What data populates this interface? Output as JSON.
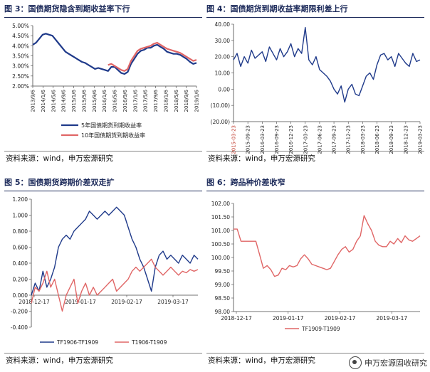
{
  "panels": [
    {
      "title": "图 3：国债期货隐含到期收益率下行",
      "source": "资料来源：wind，申万宏源研究"
    },
    {
      "title": "图 4：国债期货到期收益率期限利差上行",
      "source": "资料来源：wind，申万宏源研究"
    },
    {
      "title": "图 5：国债期货跨期价差双走扩",
      "source": "资料来源：wind，申万宏源研究"
    },
    {
      "title": "图 6：跨品种价差收窄",
      "source": "资料来源：wind，申万宏源研究"
    }
  ],
  "watermark": "申万宏源固收研究",
  "colors": {
    "navy": "#1f3a8a",
    "red": "#e06666",
    "title": "#1c2a5a"
  },
  "chart_data": [
    {
      "type": "line",
      "ylim": [
        2.0,
        5.0
      ],
      "yticks": [
        "2.00%",
        "2.50%",
        "3.00%",
        "3.50%",
        "4.00%",
        "4.50%",
        "5.00%"
      ],
      "xticks": [
        "2013/9/6",
        "2014/1/6",
        "2014/5/6",
        "2014/9/6",
        "2015/1/6",
        "2015/5/6",
        "2015/9/6",
        "2016/1/6",
        "2016/5/6",
        "2016/9/6",
        "2017/1/6",
        "2017/5/6",
        "2017/9/6",
        "2018/1/6",
        "2018/5/6",
        "2018/9/6",
        "2019/1/6"
      ],
      "series": [
        {
          "name": "5年国债期货到期收益率",
          "values": [
            4.05,
            4.15,
            4.35,
            4.55,
            4.6,
            4.55,
            4.5,
            4.3,
            4.1,
            3.9,
            3.7,
            3.6,
            3.5,
            3.4,
            3.3,
            3.2,
            3.15,
            3.05,
            2.95,
            2.85,
            2.9,
            2.85,
            2.8,
            2.75,
            2.95,
            2.95,
            2.8,
            2.65,
            2.6,
            2.7,
            3.1,
            3.35,
            3.6,
            3.75,
            3.8,
            3.9,
            3.9,
            4.0,
            4.05,
            3.95,
            3.85,
            3.7,
            3.65,
            3.6,
            3.6,
            3.55,
            3.45,
            3.35,
            3.2,
            3.1,
            3.15
          ]
        },
        {
          "name": "10年国债期货到期收益率",
          "values": [
            null,
            null,
            null,
            null,
            null,
            null,
            null,
            null,
            null,
            null,
            null,
            null,
            null,
            null,
            null,
            null,
            null,
            null,
            null,
            null,
            null,
            null,
            null,
            3.05,
            3.1,
            3.0,
            2.9,
            2.8,
            2.75,
            2.85,
            3.25,
            3.5,
            3.75,
            3.85,
            3.9,
            3.95,
            4.0,
            4.1,
            4.15,
            4.05,
            3.95,
            3.85,
            3.8,
            3.75,
            3.7,
            3.65,
            3.55,
            3.45,
            3.35,
            3.25,
            3.3
          ]
        }
      ]
    },
    {
      "type": "line",
      "ylim": [
        -20,
        40
      ],
      "yticks": [
        "(20.00)",
        "(10.00)",
        "0.00",
        "10.00",
        "20.00",
        "30.00",
        "40.00"
      ],
      "xticks": [
        "2015-03-23",
        "2015-09-23",
        "2016-03-23",
        "2016-09-23",
        "2016-12-23",
        "2017-03-23",
        "2017-06-23",
        "2017-09-23",
        "2017-12-23",
        "2018-03-23",
        "2018-06-23",
        "2018-09-23",
        "2018-12-23",
        "2019-03-23"
      ],
      "series": [
        {
          "name": "",
          "values": [
            18,
            22,
            14,
            20,
            16,
            24,
            19,
            21,
            23,
            17,
            26,
            22,
            18,
            25,
            20,
            23,
            28,
            20,
            25,
            22,
            38,
            18,
            15,
            20,
            12,
            10,
            8,
            5,
            0,
            -3,
            2,
            -8,
            0,
            3,
            -3,
            -4,
            2,
            8,
            10,
            6,
            15,
            21,
            22,
            18,
            20,
            14,
            22,
            19,
            16,
            14,
            22,
            17,
            18
          ]
        }
      ]
    },
    {
      "type": "line",
      "ylim": [
        -0.4,
        1.2
      ],
      "yticks": [
        "-0.400",
        "-0.200",
        "0.000",
        "0.200",
        "0.400",
        "0.600",
        "0.800",
        "1.000",
        "1.200"
      ],
      "xticks": [
        "2018-12-17",
        "2019-01-17",
        "2019-02-17",
        "2019-03-17"
      ],
      "series": [
        {
          "name": "TF1906-TF1909",
          "values": [
            0.0,
            0.15,
            0.05,
            0.3,
            0.1,
            0.2,
            0.35,
            0.6,
            0.7,
            0.75,
            0.7,
            0.8,
            0.85,
            0.9,
            0.95,
            1.05,
            1.0,
            0.95,
            1.0,
            1.05,
            1.0,
            1.05,
            1.1,
            1.05,
            1.0,
            0.85,
            0.7,
            0.6,
            0.45,
            0.35,
            0.2,
            0.05,
            0.35,
            0.5,
            0.55,
            0.45,
            0.5,
            0.45,
            0.4,
            0.5,
            0.45,
            0.4,
            0.5,
            0.45
          ]
        },
        {
          "name": "T1906-T1909",
          "values": [
            -0.1,
            0.1,
            0.05,
            0.15,
            0.3,
            0.1,
            0.2,
            0.0,
            -0.2,
            0.0,
            0.1,
            0.2,
            -0.1,
            0.05,
            0.15,
            0.0,
            0.1,
            0.0,
            0.05,
            0.1,
            0.15,
            0.2,
            0.05,
            0.1,
            0.15,
            0.2,
            0.3,
            0.35,
            0.3,
            0.35,
            0.4,
            0.45,
            0.35,
            0.3,
            0.25,
            0.3,
            0.35,
            0.3,
            0.25,
            0.3,
            0.28,
            0.32,
            0.3,
            0.32
          ]
        }
      ]
    },
    {
      "type": "line",
      "ylim": [
        98.0,
        102.0
      ],
      "yticks": [
        "98.00",
        "98.50",
        "99.00",
        "99.50",
        "100.00",
        "100.50",
        "101.00",
        "101.50",
        "102.00"
      ],
      "xticks": [
        "2018-12-17",
        "2019-01-17",
        "2019-02-17",
        "2019-03-17"
      ],
      "series": [
        {
          "name": "TF1909-T1909",
          "values": [
            101.05,
            101.05,
            100.6,
            100.6,
            100.6,
            100.6,
            100.6,
            100.1,
            99.6,
            99.7,
            99.55,
            99.3,
            99.35,
            99.6,
            99.55,
            99.7,
            99.65,
            99.7,
            99.95,
            100.1,
            99.95,
            99.75,
            99.7,
            99.65,
            99.6,
            99.55,
            99.6,
            99.85,
            100.1,
            100.3,
            100.4,
            100.2,
            100.3,
            100.6,
            100.8,
            101.55,
            101.25,
            101.0,
            100.6,
            100.45,
            100.4,
            100.4,
            100.6,
            100.5,
            100.7,
            100.55,
            100.8,
            100.65,
            100.6,
            100.7,
            100.8
          ]
        }
      ]
    }
  ]
}
